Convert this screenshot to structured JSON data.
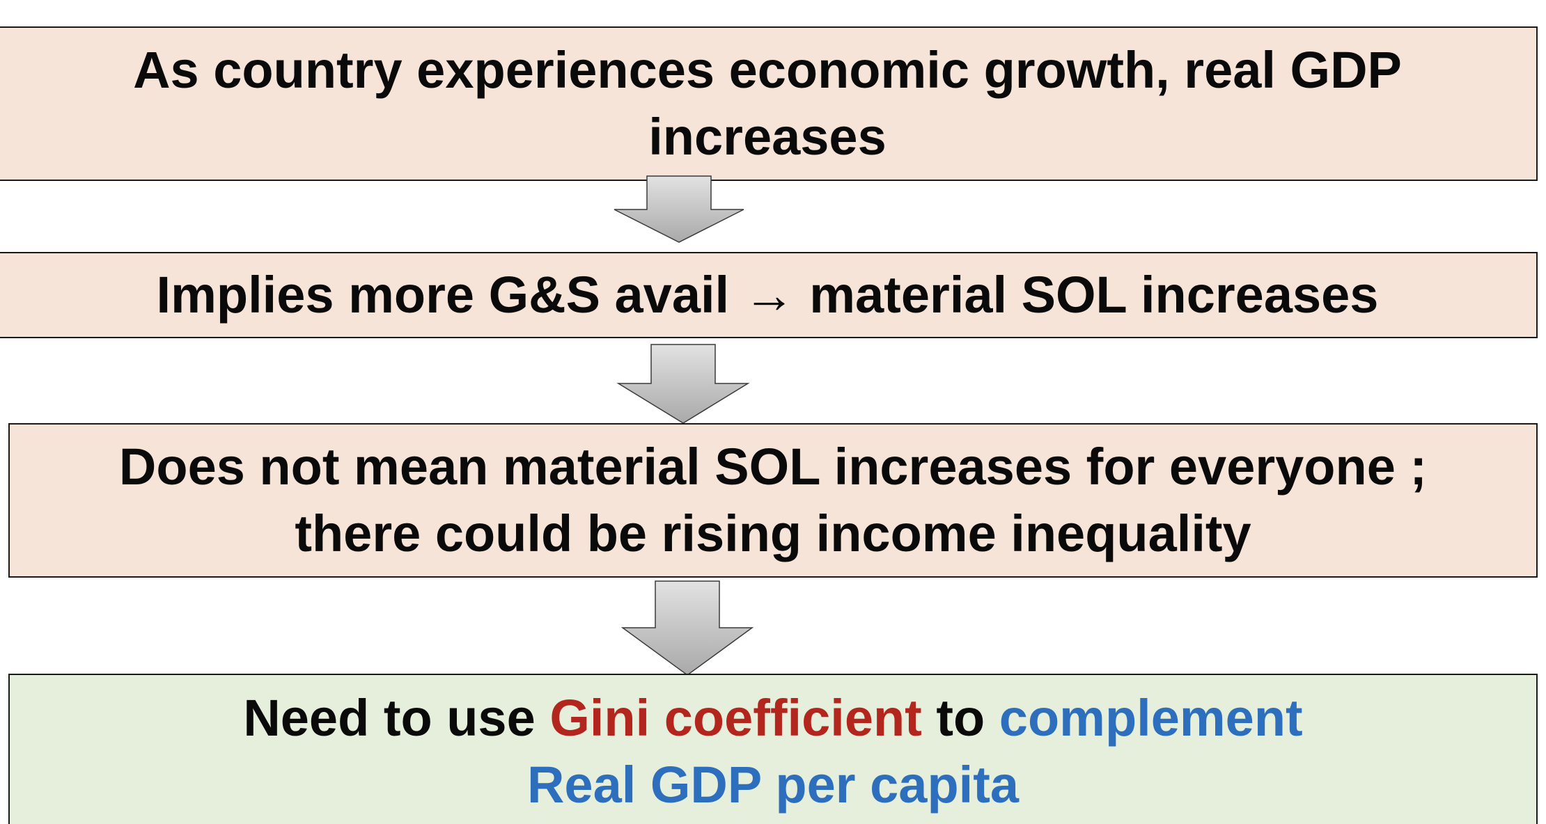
{
  "steps": [
    {
      "line1": "As country experiences economic growth, real GDP",
      "line2": "increases"
    },
    {
      "line1": "Implies more G&S avail → material SOL increases"
    },
    {
      "line1": "Does not mean material SOL increases for everyone ;",
      "line2": "there could be rising income inequality"
    }
  ],
  "conclusion": {
    "part1": "Need to use ",
    "part2": "Gini coefficient",
    "part3": " to ",
    "part4": "complement",
    "line2": "Real GDP per capita"
  },
  "colors": {
    "box_fill": "#f7e4d8",
    "conclusion_fill": "#e6efdc",
    "highlight_red": "#b3261e",
    "highlight_blue": "#2e6fbd",
    "arrow_fill": "#c4c4c4"
  },
  "icons": [
    "down-arrow-icon",
    "right-arrow-icon"
  ]
}
